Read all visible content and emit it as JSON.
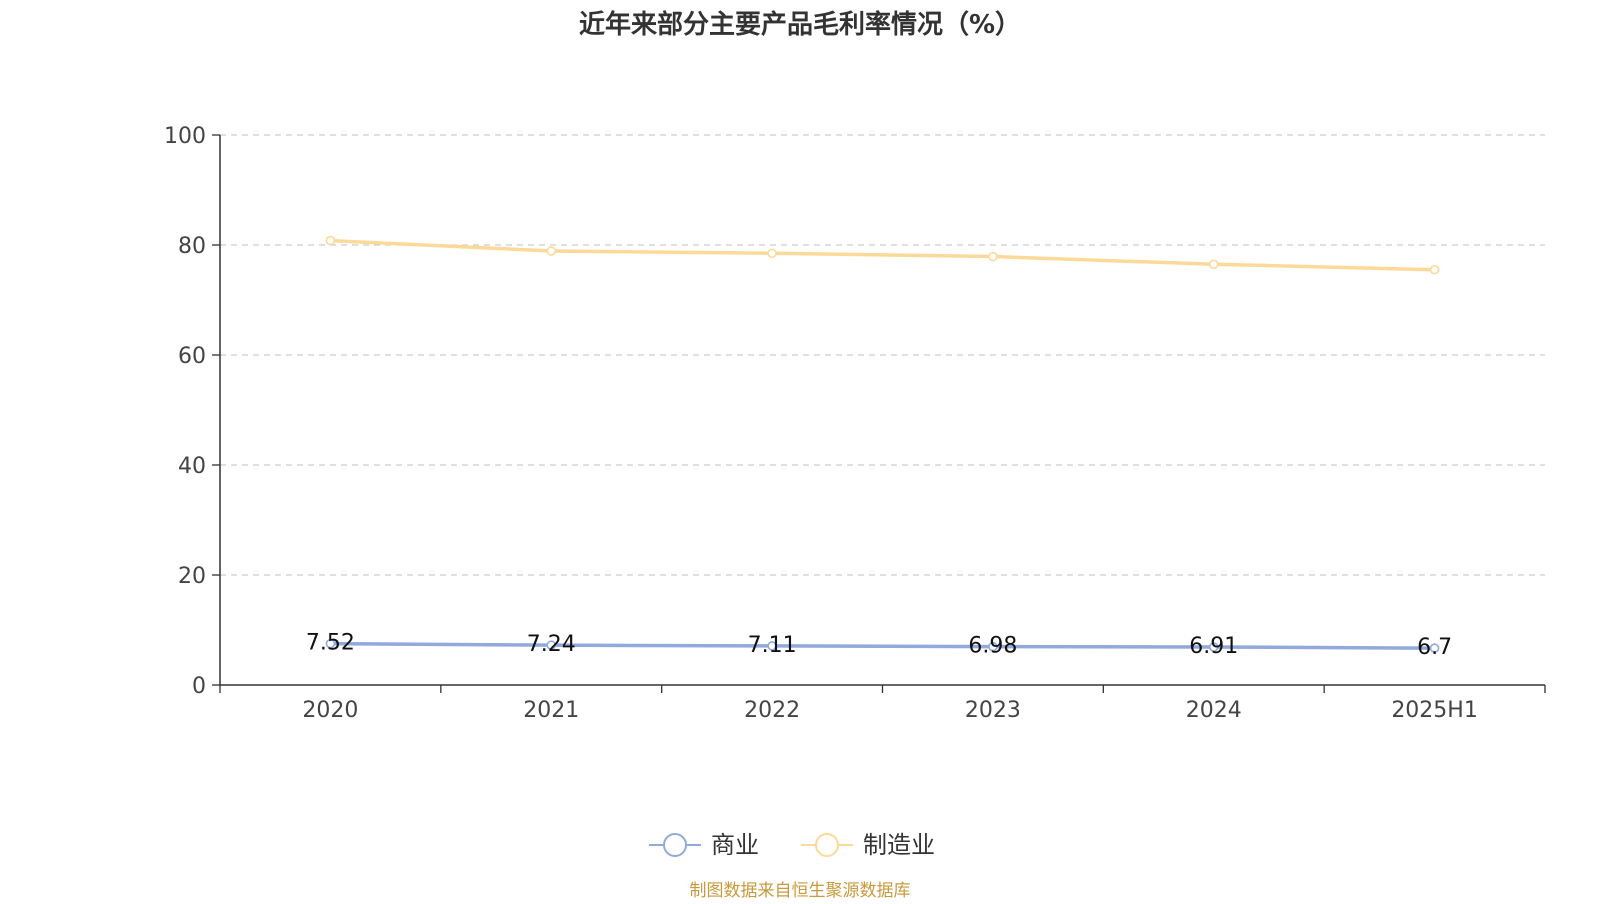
{
  "chart_data": {
    "type": "line",
    "title": "近年来部分主要产品毛利率情况（%）",
    "categories": [
      "2020",
      "2021",
      "2022",
      "2023",
      "2024",
      "2025H1"
    ],
    "series": [
      {
        "name": "商业",
        "values": [
          7.52,
          7.24,
          7.11,
          6.98,
          6.91,
          6.7
        ],
        "show_labels": true,
        "color": "#91a9dc"
      },
      {
        "name": "制造业",
        "values": [
          80.8,
          78.9,
          78.5,
          77.9,
          76.5,
          75.5
        ],
        "show_labels": false,
        "color": "#fcd998"
      }
    ],
    "ylim": [
      0,
      100
    ],
    "yticks": [
      "0",
      "20",
      "40",
      "60",
      "80",
      "100"
    ],
    "grid": true,
    "legend_position": "bottom"
  },
  "source_note": "制图数据来自恒生聚源数据库",
  "colors": {
    "title": "#333333",
    "axis": "#333333",
    "tick_label": "#444444",
    "grid": "#cccccc",
    "source": "#c99a3c"
  }
}
